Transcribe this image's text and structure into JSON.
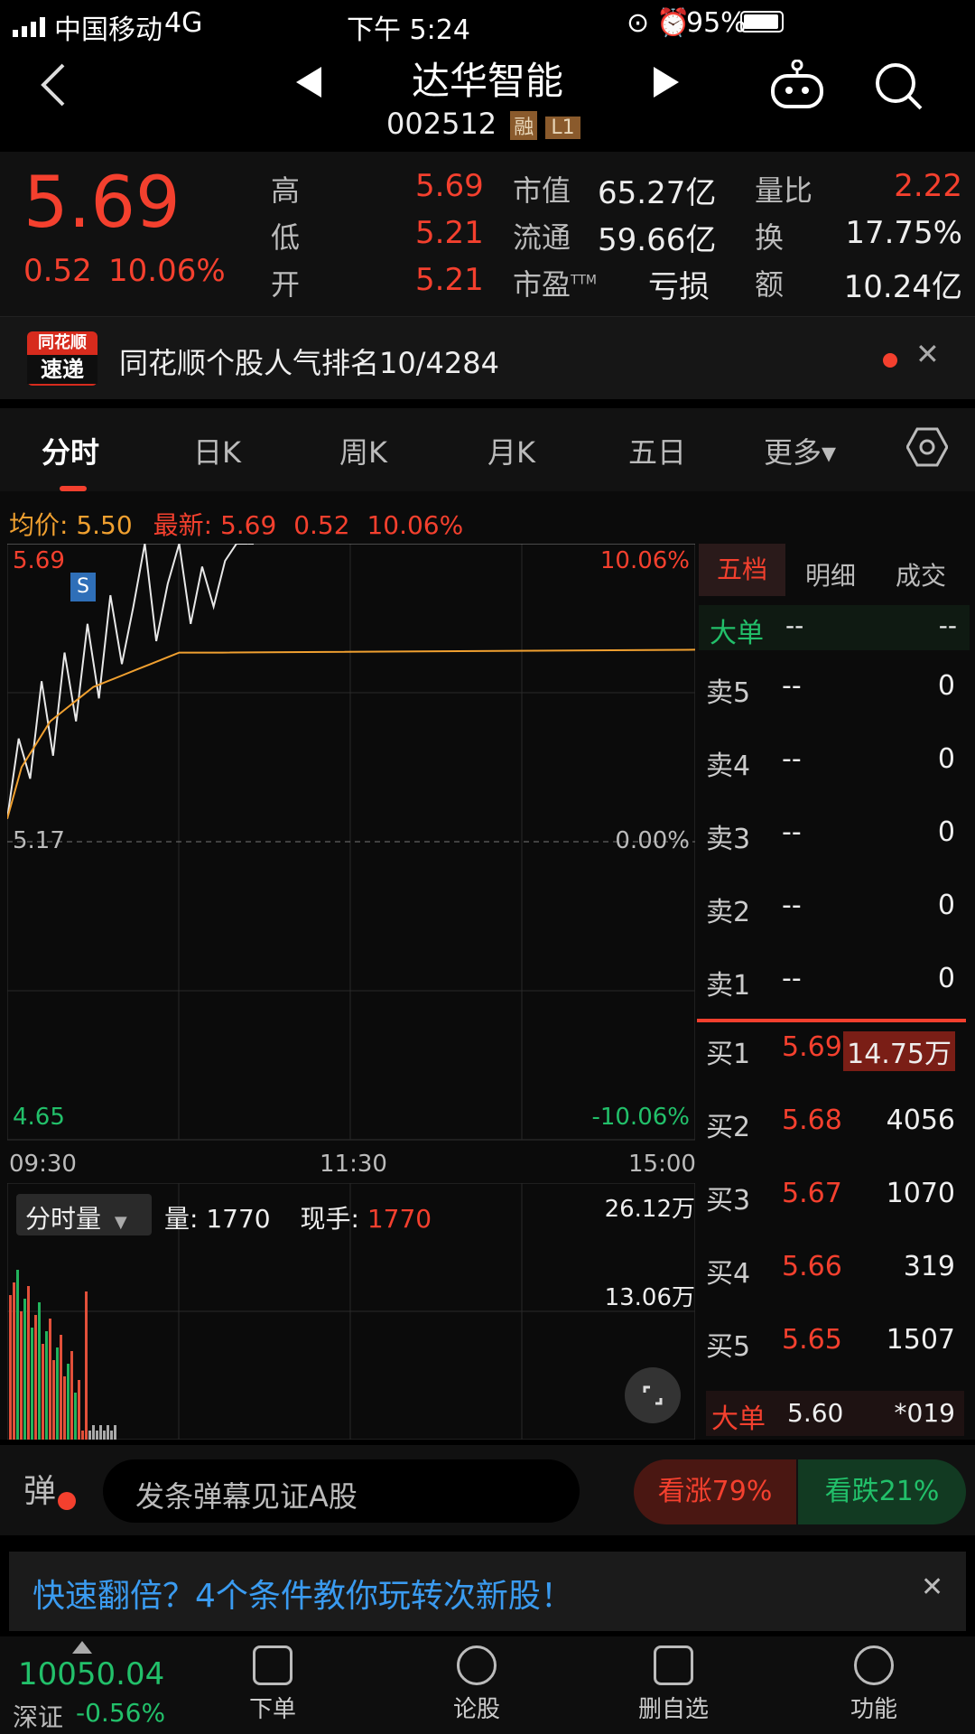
{
  "status_bar": {
    "carrier": "中国移动",
    "network": "4G",
    "time": "下午 5:24",
    "battery": "95%"
  },
  "header": {
    "title": "达华智能",
    "code": "002512",
    "badge1": "融",
    "badge2": "L1"
  },
  "quote": {
    "price": "5.69",
    "change": "0.52",
    "change_pct": "10.06%",
    "high_label": "高",
    "high": "5.69",
    "low_label": "低",
    "low": "5.21",
    "open_label": "开",
    "open": "5.21",
    "mcap_label": "市值",
    "mcap": "65.27亿",
    "float_label": "流通",
    "float": "59.66亿",
    "pe_label": "市盈",
    "pe_sup": "TTM",
    "pe": "亏损",
    "vr_label": "量比",
    "vr": "2.22",
    "turn_label": "换",
    "turn": "17.75%",
    "amt_label": "额",
    "amt": "10.24亿"
  },
  "banner": {
    "logo_top": "同花顺",
    "logo_bottom": "速递",
    "text": "同花顺个股人气排名10/4284"
  },
  "tabs": [
    "分时",
    "日K",
    "周K",
    "月K",
    "五日",
    "更多▾"
  ],
  "chart_info": {
    "avg_label": "均价:",
    "avg": "5.50",
    "latest_label": "最新:",
    "latest": "5.69",
    "chg": "0.52",
    "chg_pct": "10.06%"
  },
  "chart_data": {
    "type": "line",
    "y_left_labels": [
      "5.69",
      "5.17",
      "4.65"
    ],
    "y_right_labels": [
      "10.06%",
      "0.00%",
      "-10.06%"
    ],
    "x_labels": [
      "09:30",
      "11:30",
      "15:00"
    ],
    "marker": "S",
    "price_series": [
      5.21,
      5.35,
      5.28,
      5.45,
      5.32,
      5.5,
      5.38,
      5.55,
      5.42,
      5.6,
      5.48,
      5.58,
      5.69,
      5.52,
      5.62,
      5.69,
      5.55,
      5.65,
      5.58,
      5.66,
      5.69,
      5.69
    ],
    "avg_series": [
      5.21,
      5.3,
      5.34,
      5.38,
      5.4,
      5.42,
      5.44,
      5.45,
      5.46,
      5.47,
      5.48,
      5.49,
      5.5,
      5.5,
      5.5,
      5.5
    ]
  },
  "volume": {
    "selector": "分时量",
    "vol_label": "量:",
    "vol": "1770",
    "hand_label": "现手:",
    "hand": "1770",
    "max": "26.12万",
    "mid": "13.06万"
  },
  "orderbook": {
    "tabs": [
      "五档",
      "明细",
      "成交"
    ],
    "big_label": "大单",
    "big_v1": "--",
    "big_v2": "--",
    "sells": [
      {
        "name": "卖5",
        "price": "--",
        "vol": "0"
      },
      {
        "name": "卖4",
        "price": "--",
        "vol": "0"
      },
      {
        "name": "卖3",
        "price": "--",
        "vol": "0"
      },
      {
        "name": "卖2",
        "price": "--",
        "vol": "0"
      },
      {
        "name": "卖1",
        "price": "--",
        "vol": "0"
      }
    ],
    "buys": [
      {
        "name": "买1",
        "price": "5.69",
        "vol": "14.75万"
      },
      {
        "name": "买2",
        "price": "5.68",
        "vol": "4056"
      },
      {
        "name": "买3",
        "price": "5.67",
        "vol": "1070"
      },
      {
        "name": "买4",
        "price": "5.66",
        "vol": "319"
      },
      {
        "name": "买5",
        "price": "5.65",
        "vol": "1507"
      }
    ],
    "bottom_label": "大单",
    "bottom_price": "5.60",
    "bottom_vol": "*019"
  },
  "danmu": {
    "icon": "弹",
    "placeholder": "发条弹幕见证A股",
    "bull": "看涨79%",
    "bear": "看跌21%"
  },
  "ad": {
    "text": "快速翻倍？4个条件教你玩转次新股！"
  },
  "bottom_nav": {
    "index": "10050.04",
    "index_name": "深证",
    "index_chg": "-0.56%",
    "items": [
      "下单",
      "论股",
      "删自选",
      "功能"
    ]
  }
}
